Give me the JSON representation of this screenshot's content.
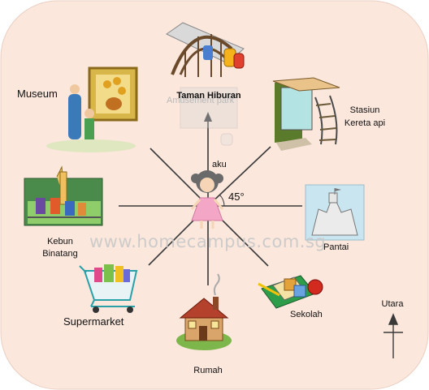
{
  "diagram": {
    "watermark": "www.homecampus.com.sg",
    "ghost_text": "Amusement park",
    "center_label": "aku",
    "angle_label": "45°",
    "compass_label": "Utara",
    "places": {
      "north": "Taman Hiburan",
      "northeast_line1": "Stasiun",
      "northeast_line2": "Kereta api",
      "east": "Pantai",
      "southeast": "Sekolah",
      "south": "Rumah",
      "southwest": "Supermarket",
      "west_line1": "Kebun",
      "west_line2": "Binatang",
      "northwest": "Museum"
    },
    "colors": {
      "background": "#fbe7dc",
      "lines": "#3a3a3a",
      "girl_dress": "#f4a6c6"
    }
  }
}
